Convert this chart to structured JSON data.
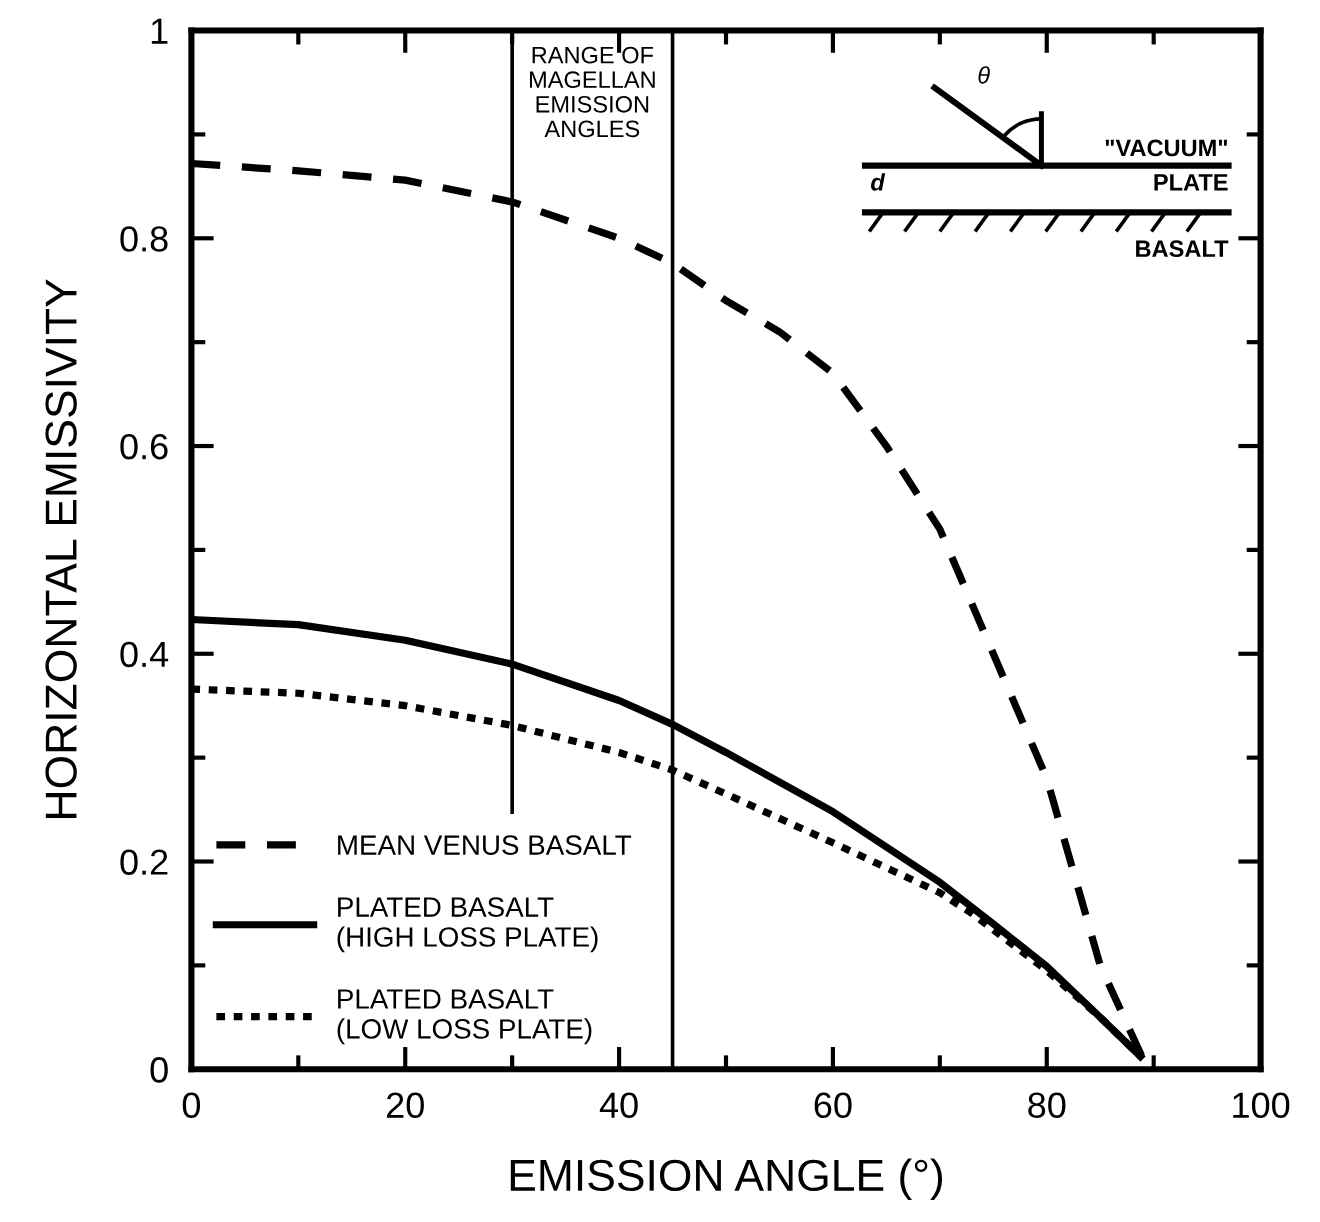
{
  "chart_data": {
    "type": "line",
    "xlabel": "EMISSION ANGLE (°)",
    "ylabel": "HORIZONTAL EMISSIVITY",
    "xlim": [
      0,
      100
    ],
    "xticks": [
      0,
      20,
      40,
      60,
      80,
      100
    ],
    "ylim": [
      0,
      1
    ],
    "yticks": [
      0,
      0.2,
      0.4,
      0.6,
      0.8,
      1
    ],
    "grid": false,
    "legend": "bottom left",
    "marker": "none",
    "series": [
      {
        "name": "MEAN VENUS BASALT",
        "color": "#000000",
        "line_style": "dashed",
        "x": [
          0,
          10,
          20,
          30,
          40,
          45,
          50,
          55,
          60,
          65,
          70,
          75,
          80,
          85,
          89
        ],
        "values": [
          0.872,
          0.865,
          0.856,
          0.835,
          0.8,
          0.776,
          0.74,
          0.71,
          0.67,
          0.6,
          0.52,
          0.4,
          0.28,
          0.1,
          0.01
        ]
      },
      {
        "name": "PLATED BASALT\n(HIGH LOSS PLATE)",
        "color": "#000000",
        "line_style": "solid",
        "x": [
          0,
          10,
          20,
          30,
          40,
          45,
          50,
          60,
          70,
          75,
          80,
          85,
          89
        ],
        "values": [
          0.433,
          0.428,
          0.413,
          0.39,
          0.355,
          0.332,
          0.305,
          0.248,
          0.18,
          0.14,
          0.099,
          0.05,
          0.01
        ]
      },
      {
        "name": "PLATED BASALT\n(LOW LOSS PLATE)",
        "color": "#000000",
        "line_style": "dotted",
        "x": [
          0,
          10,
          20,
          30,
          40,
          45,
          50,
          60,
          70,
          73,
          80,
          85,
          89
        ],
        "values": [
          0.366,
          0.362,
          0.35,
          0.331,
          0.305,
          0.288,
          0.265,
          0.218,
          0.17,
          0.15,
          0.095,
          0.05,
          0.01
        ]
      }
    ],
    "ref_lines": [
      {
        "axis": "x",
        "value": 30,
        "color": "#000000"
      },
      {
        "axis": "x",
        "value": 45,
        "color": "#000000"
      }
    ],
    "annotations": [
      "RANGE OF\nMAGELLAN\nEMISSION\nANGLES",
      "θ",
      "\"VACUUM\"",
      "d",
      "PLATE",
      "BASALT"
    ]
  }
}
